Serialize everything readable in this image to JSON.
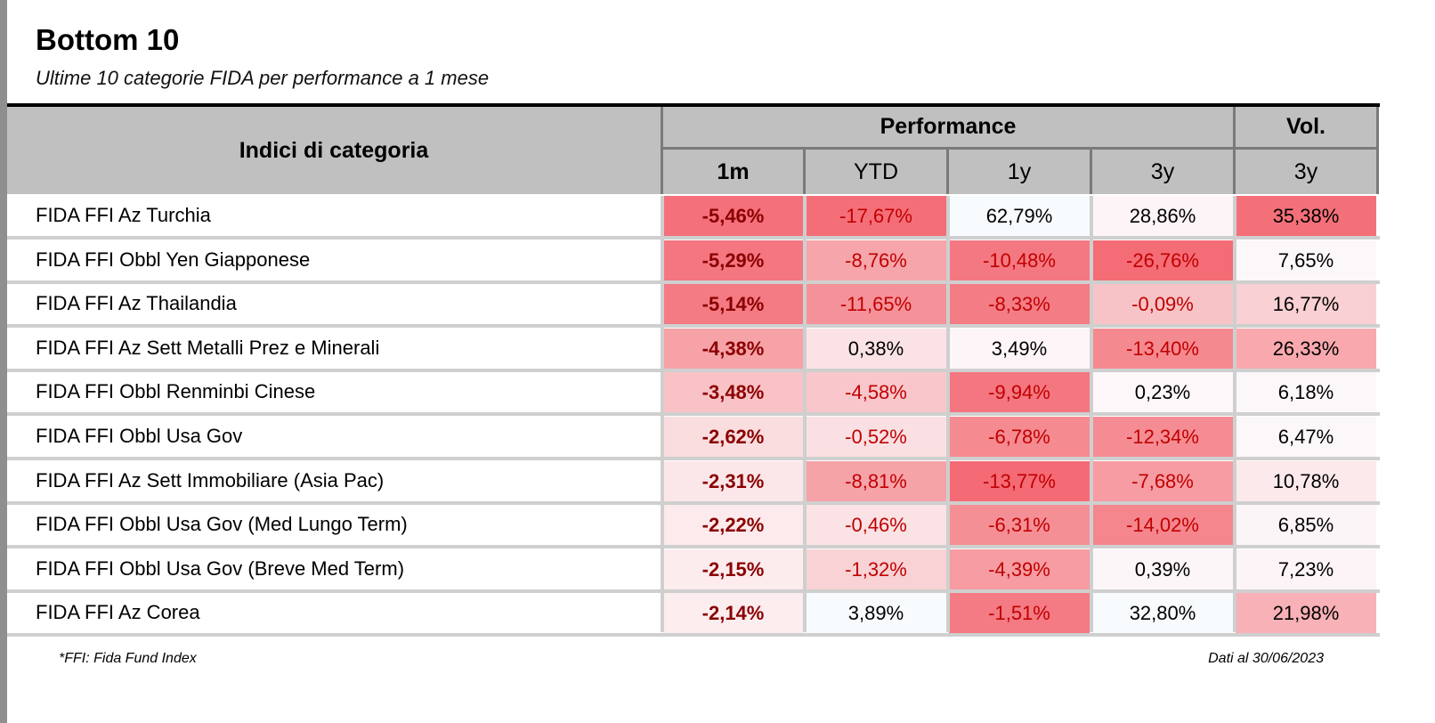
{
  "title": "Bottom 10",
  "subtitle": "Ultime 10 categorie FIDA per performance a 1 mese",
  "header": {
    "category_label": "Indici di categoria",
    "performance_label": "Performance",
    "vol_label": "Vol.",
    "columns": [
      "1m",
      "YTD",
      "1y",
      "3y",
      "3y"
    ]
  },
  "rows": [
    {
      "name": "FIDA FFI Az Turchia",
      "values": [
        "-5,46%",
        "-17,67%",
        "62,79%",
        "28,86%",
        "35,38%"
      ]
    },
    {
      "name": "FIDA FFI Obbl Yen Giapponese",
      "values": [
        "-5,29%",
        "-8,76%",
        "-10,48%",
        "-26,76%",
        "7,65%"
      ]
    },
    {
      "name": "FIDA FFI Az Thailandia",
      "values": [
        "-5,14%",
        "-11,65%",
        "-8,33%",
        "-0,09%",
        "16,77%"
      ]
    },
    {
      "name": "FIDA FFI Az Sett Metalli Prez e Minerali",
      "values": [
        "-4,38%",
        "0,38%",
        "3,49%",
        "-13,40%",
        "26,33%"
      ]
    },
    {
      "name": "FIDA FFI Obbl Renminbi Cinese",
      "values": [
        "-3,48%",
        "-4,58%",
        "-9,94%",
        "0,23%",
        "6,18%"
      ]
    },
    {
      "name": "FIDA FFI Obbl Usa Gov",
      "values": [
        "-2,62%",
        "-0,52%",
        "-6,78%",
        "-12,34%",
        "6,47%"
      ]
    },
    {
      "name": "FIDA FFI Az Sett Immobiliare (Asia Pac)",
      "values": [
        "-2,31%",
        "-8,81%",
        "-13,77%",
        "-7,68%",
        "10,78%"
      ]
    },
    {
      "name": "FIDA FFI Obbl Usa Gov (Med Lungo Term)",
      "values": [
        "-2,22%",
        "-0,46%",
        "-6,31%",
        "-14,02%",
        "6,85%"
      ]
    },
    {
      "name": "FIDA FFI Obbl Usa Gov (Breve Med Term)",
      "values": [
        "-2,15%",
        "-1,32%",
        "-4,39%",
        "0,39%",
        "7,23%"
      ]
    },
    {
      "name": "FIDA FFI Az Corea",
      "values": [
        "-2,14%",
        "3,89%",
        "-1,51%",
        "32,80%",
        "21,98%"
      ]
    }
  ],
  "colors": {
    "heat": [
      [
        "#f4707a",
        "#f46e78",
        "#f7fbfd",
        "#fcf4f6",
        "#f47079"
      ],
      [
        "#f47680",
        "#f6a5aa",
        "#f47881",
        "#f46c76",
        "#fcf7f9"
      ],
      [
        "#f47a83",
        "#f59299",
        "#f47c85",
        "#f8c3c7",
        "#f9d0d3"
      ],
      [
        "#f6a2a7",
        "#fbe3e5",
        "#fdf5f7",
        "#f58990",
        "#f9a9ae"
      ],
      [
        "#f8c2c6",
        "#f9c7cb",
        "#f47680",
        "#fdf7f9",
        "#fcf8fa"
      ],
      [
        "#fadddf",
        "#fae0e2",
        "#f58a91",
        "#f58c93",
        "#fcf7f9"
      ],
      [
        "#fbe7e9",
        "#f6a3a8",
        "#f46a75",
        "#f69ca2",
        "#fbe9eb"
      ],
      [
        "#fceaec",
        "#fbe2e4",
        "#f58f96",
        "#f5868d",
        "#fcf5f7"
      ],
      [
        "#fcecee",
        "#f9d2d5",
        "#f69ca2",
        "#fdf6f8",
        "#fcf4f6"
      ],
      [
        "#fcedef",
        "#f8fbfd",
        "#f47a83",
        "#f7fbfd",
        "#f8b1b6"
      ]
    ]
  },
  "footnote": "*FFI: Fida Fund Index",
  "date_note": "Dati al  30/06/2023"
}
